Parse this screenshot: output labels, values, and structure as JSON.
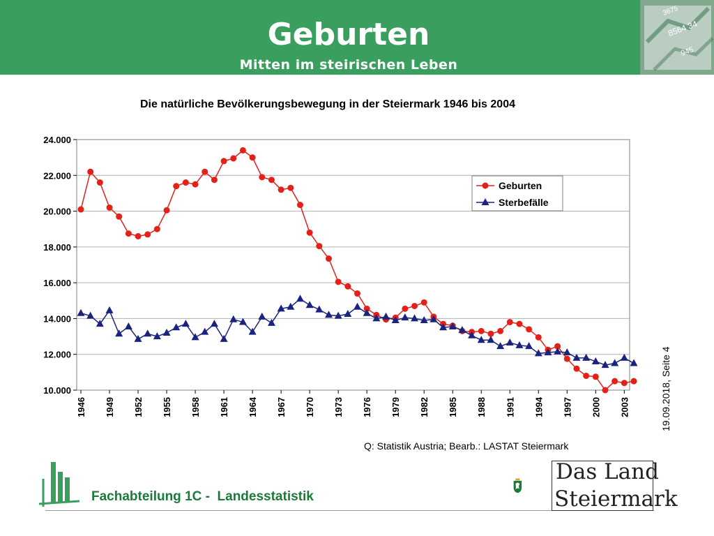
{
  "header": {
    "title": "Geburten",
    "subtitle": "Mitten im steirischen Leben"
  },
  "footer": {
    "date_page": "19.09.2018, Seite 4",
    "department": "Fachabteilung 1C -  Landesstatistik",
    "brand_line1": "Das Land",
    "brand_line2": "Steiermark"
  },
  "colors": {
    "header_green": "#3a9e5e",
    "births": "#e32119",
    "deaths": "#1a237e",
    "department_text": "#1a7a3a"
  },
  "chart_data": {
    "type": "line",
    "title": "Die natürliche Bevölkerungsbewegung in der Steiermark 1946 bis 2004",
    "source": "Q: Statistik Austria; Bearb.: LASTAT Steiermark",
    "ylim": [
      10000,
      24000
    ],
    "xlim": [
      1946,
      2004
    ],
    "yticks": [
      10000,
      12000,
      14000,
      16000,
      18000,
      20000,
      22000,
      24000
    ],
    "ytick_labels": [
      "10.000",
      "12.000",
      "14.000",
      "16.000",
      "18.000",
      "20.000",
      "22.000",
      "24.000"
    ],
    "xticks": [
      1946,
      1949,
      1952,
      1955,
      1958,
      1961,
      1964,
      1967,
      1970,
      1973,
      1976,
      1979,
      1982,
      1985,
      1988,
      1991,
      1994,
      1997,
      2000,
      2003
    ],
    "xtick_labels": [
      "1946",
      "1949",
      "1952",
      "1955",
      "1958",
      "1961",
      "1964",
      "1967",
      "1970",
      "1973",
      "1976",
      "1979",
      "1982",
      "1985",
      "1988",
      "1991",
      "1994",
      "1997",
      "2000",
      "2003"
    ],
    "grid": true,
    "legend_position": "upper-right",
    "x": [
      1946,
      1947,
      1948,
      1949,
      1950,
      1951,
      1952,
      1953,
      1954,
      1955,
      1956,
      1957,
      1958,
      1959,
      1960,
      1961,
      1962,
      1963,
      1964,
      1965,
      1966,
      1967,
      1968,
      1969,
      1970,
      1971,
      1972,
      1973,
      1974,
      1975,
      1976,
      1977,
      1978,
      1979,
      1980,
      1981,
      1982,
      1983,
      1984,
      1985,
      1986,
      1987,
      1988,
      1989,
      1990,
      1991,
      1992,
      1993,
      1994,
      1995,
      1996,
      1997,
      1998,
      1999,
      2000,
      2001,
      2002,
      2003,
      2004
    ],
    "series": [
      {
        "name": "Geburten",
        "marker": "circle",
        "color": "#e32119",
        "values": [
          20100,
          22200,
          21600,
          20200,
          19700,
          18750,
          18600,
          18700,
          19000,
          20050,
          21400,
          21600,
          21500,
          22200,
          21750,
          22800,
          22950,
          23400,
          23000,
          21900,
          21750,
          21200,
          21300,
          20350,
          18800,
          18050,
          17350,
          16050,
          15800,
          15400,
          14550,
          14200,
          13950,
          14050,
          14550,
          14700,
          14900,
          14100,
          13700,
          13600,
          13300,
          13250,
          13300,
          13150,
          13300,
          13800,
          13700,
          13400,
          12950,
          12250,
          12450,
          11750,
          11200,
          10800,
          10750,
          10000,
          10500,
          10400,
          10500
        ]
      },
      {
        "name": "Sterbefälle",
        "marker": "triangle",
        "color": "#1a237e",
        "values": [
          14300,
          14150,
          13700,
          14450,
          13150,
          13550,
          12850,
          13150,
          13000,
          13200,
          13500,
          13700,
          12950,
          13250,
          13700,
          12850,
          13950,
          13800,
          13250,
          14100,
          13750,
          14550,
          14650,
          15100,
          14750,
          14500,
          14200,
          14150,
          14250,
          14650,
          14300,
          14000,
          14100,
          13900,
          14050,
          14000,
          13900,
          13950,
          13500,
          13550,
          13350,
          13050,
          12800,
          12800,
          12450,
          12650,
          12500,
          12450,
          12050,
          12100,
          12150,
          12100,
          11800,
          11800,
          11600,
          11400,
          11500,
          11800,
          11500
        ]
      }
    ]
  }
}
